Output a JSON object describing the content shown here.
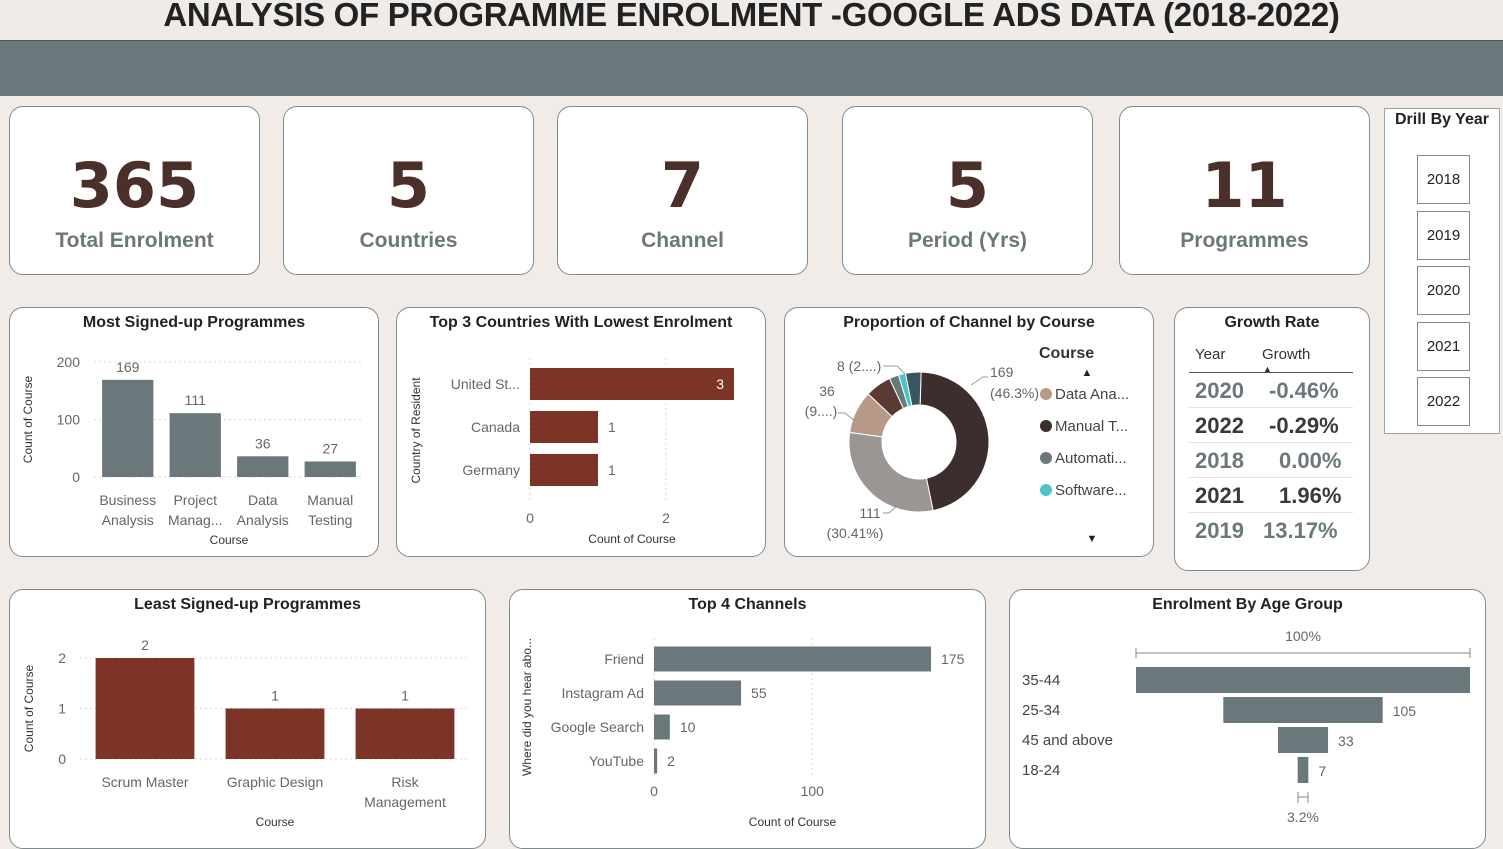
{
  "header": {
    "title": "ANALYSIS OF PROGRAMME ENROLMENT -GOOGLE ADS DATA (2018-2022)"
  },
  "colors": {
    "band": "#6b787b",
    "kpi_value": "#4a2f2a",
    "slate": "#6b787b",
    "rust": "#7b3426"
  },
  "kpis": [
    {
      "value": "365",
      "label": "Total Enrolment"
    },
    {
      "value": "5",
      "label": "Countries"
    },
    {
      "value": "7",
      "label": "Channel"
    },
    {
      "value": "5",
      "label": "Period (Yrs)"
    },
    {
      "value": "11",
      "label": "Programmes"
    }
  ],
  "drill": {
    "title": "Drill By Year",
    "years": [
      "2018",
      "2019",
      "2020",
      "2021",
      "2022"
    ]
  },
  "growth": {
    "title": "Growth Rate",
    "col_year": "Year",
    "col_growth": "Growth",
    "rows": [
      {
        "year": "2020",
        "growth": "-0.46%"
      },
      {
        "year": "2022",
        "growth": "-0.29%"
      },
      {
        "year": "2018",
        "growth": "0.00%"
      },
      {
        "year": "2021",
        "growth": "1.96%"
      },
      {
        "year": "2019",
        "growth": "13.17%"
      }
    ]
  },
  "chart_data": [
    {
      "id": "most-signed",
      "type": "bar",
      "title": "Most Signed-up Programmes",
      "xlabel": "Course",
      "ylabel": "Count of Course",
      "ylim": [
        0,
        200
      ],
      "yticks": [
        "0",
        "100",
        "200"
      ],
      "categories": [
        [
          "Business",
          "Analysis"
        ],
        [
          "Project",
          "Manag..."
        ],
        [
          "Data",
          "Analysis"
        ],
        [
          "Manual",
          "Testing"
        ]
      ],
      "values": [
        169,
        111,
        36,
        27
      ],
      "labels": [
        "169",
        "111",
        "36",
        "27"
      ],
      "grid": true
    },
    {
      "id": "lowest-countries",
      "type": "bar",
      "orientation": "horizontal",
      "title": "Top 3 Countries With Lowest Enrolment",
      "xlabel": "Count of Course",
      "ylabel": "Country of Resident",
      "xlim": [
        0,
        3
      ],
      "xticks": [
        "0",
        "2"
      ],
      "categories": [
        "United St...",
        "Canada",
        "Germany"
      ],
      "values": [
        3,
        1,
        1
      ],
      "labels": [
        "3",
        "1",
        "1"
      ]
    },
    {
      "id": "channel-proportion",
      "type": "pie",
      "title": "Proportion of Channel by Course",
      "legend_title": "Course",
      "legend_position": "right",
      "legend": [
        {
          "name": "Data Ana...",
          "color": "#b89886"
        },
        {
          "name": "Manual T...",
          "color": "#3b2e2c"
        },
        {
          "name": "Automati...",
          "color": "#6b787b"
        },
        {
          "name": "Software...",
          "color": "#4ec4c4"
        }
      ],
      "slices": [
        {
          "value": 169,
          "color": "#3b2e2c"
        },
        {
          "value": 111,
          "color": "#9b9593"
        },
        {
          "value": 36,
          "color": "#b89886"
        },
        {
          "value": 22,
          "color": "#5a3a33"
        },
        {
          "value": 8,
          "color": "#6b787b"
        },
        {
          "value": 6,
          "color": "#4ec4c4"
        },
        {
          "value": 13,
          "color": "#3a5560"
        }
      ],
      "labels": [
        {
          "l1": "169",
          "l2": "(46.3%)"
        },
        {
          "l1": "111",
          "l2": "(30.41%)"
        },
        {
          "l1": "36",
          "l2": "(9....)"
        },
        {
          "l1": "8 (2....)",
          "l2": ""
        }
      ]
    },
    {
      "id": "least-signed",
      "type": "bar",
      "title": "Least Signed-up Programmes",
      "xlabel": "Course",
      "ylabel": "Count of Course",
      "ylim": [
        0,
        2
      ],
      "yticks": [
        "0",
        "1",
        "2"
      ],
      "categories": [
        [
          "Scrum Master"
        ],
        [
          "Graphic Design"
        ],
        [
          "Risk",
          "Management"
        ]
      ],
      "values": [
        2,
        1,
        1
      ],
      "labels": [
        "2",
        "1",
        "1"
      ]
    },
    {
      "id": "top-channels",
      "type": "bar",
      "orientation": "horizontal",
      "title": "Top 4 Channels",
      "xlabel": "Count of Course",
      "ylabel": "Where did you hear abo...",
      "xlim": [
        0,
        175
      ],
      "xticks": [
        "0",
        "100"
      ],
      "categories": [
        "Friend",
        "Instagram Ad",
        "Google Search",
        "YouTube"
      ],
      "values": [
        175,
        55,
        10,
        2
      ],
      "labels": [
        "175",
        "55",
        "10",
        "2"
      ]
    },
    {
      "id": "age-group",
      "type": "bar",
      "orientation": "funnel",
      "title": "Enrolment By Age Group",
      "top_label": "100%",
      "bottom_label": "3.2%",
      "categories": [
        "35-44",
        "25-34",
        "45 and above",
        "18-24"
      ],
      "values": [
        220,
        105,
        33,
        7
      ],
      "labels": [
        "",
        "105",
        "33",
        "7"
      ]
    }
  ]
}
